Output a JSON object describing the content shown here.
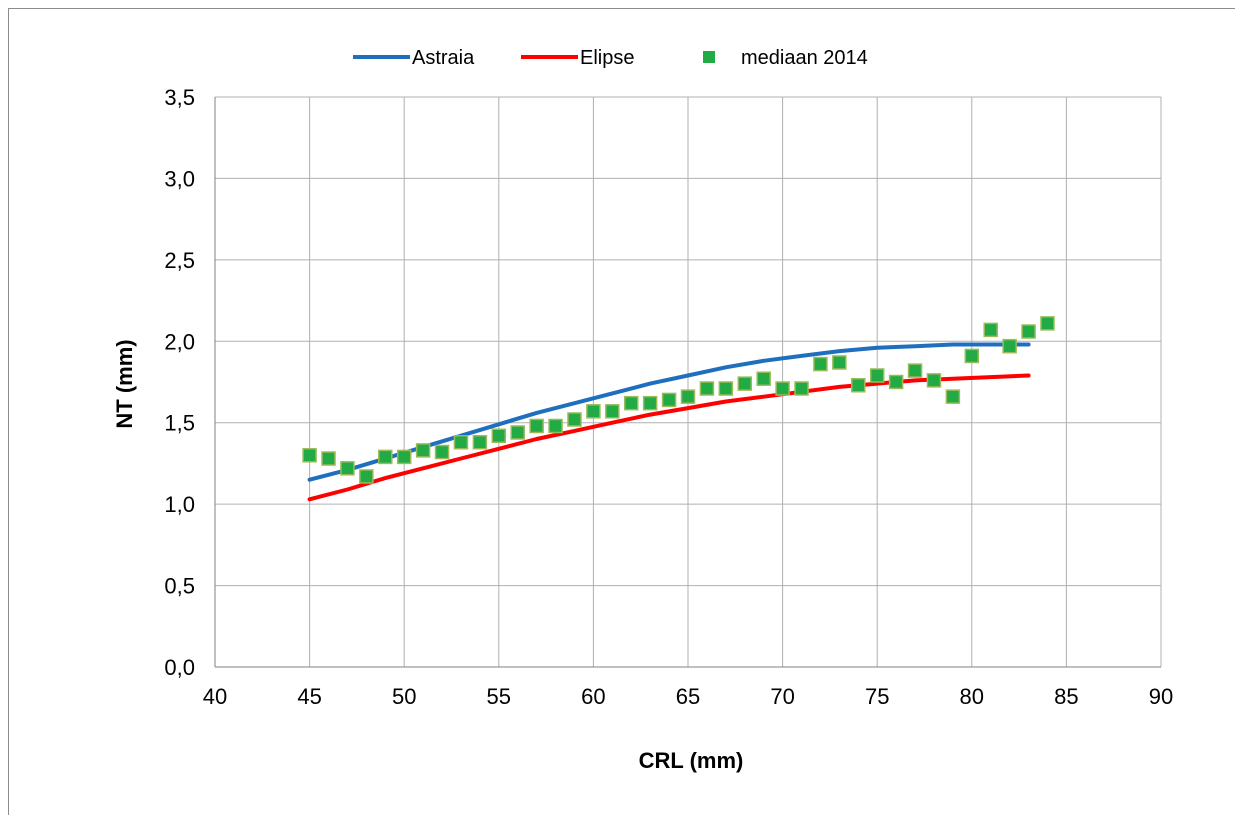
{
  "chart_data": {
    "type": "scatter",
    "xlabel": "CRL (mm)",
    "ylabel": "NT (mm)",
    "xlim": [
      40,
      90
    ],
    "ylim": [
      0,
      3.5
    ],
    "x_ticks": [
      40,
      45,
      50,
      55,
      60,
      65,
      70,
      75,
      80,
      85,
      90
    ],
    "x_tick_labels": [
      "40",
      "45",
      "50",
      "55",
      "60",
      "65",
      "70",
      "75",
      "80",
      "85",
      "90"
    ],
    "y_ticks": [
      0,
      0.5,
      1.0,
      1.5,
      2.0,
      2.5,
      3.0,
      3.5
    ],
    "y_tick_labels": [
      "0,0",
      "0,5",
      "1,0",
      "1,5",
      "2,0",
      "2,5",
      "3,0",
      "3,5"
    ],
    "grid": true,
    "legend_position": "top",
    "series": [
      {
        "name": "Astraia",
        "kind": "line",
        "color": "#1f6fbf",
        "x": [
          45,
          47,
          49,
          51,
          53,
          55,
          57,
          59,
          61,
          63,
          65,
          67,
          69,
          71,
          73,
          75,
          77,
          79,
          81,
          83
        ],
        "y": [
          1.15,
          1.21,
          1.28,
          1.35,
          1.42,
          1.49,
          1.56,
          1.62,
          1.68,
          1.74,
          1.79,
          1.84,
          1.88,
          1.91,
          1.94,
          1.96,
          1.97,
          1.98,
          1.98,
          1.98
        ]
      },
      {
        "name": "Elipse",
        "kind": "line",
        "color": "#ff0000",
        "x": [
          45,
          47,
          49,
          51,
          53,
          55,
          57,
          59,
          61,
          63,
          65,
          67,
          69,
          71,
          73,
          75,
          77,
          79,
          81,
          83
        ],
        "y": [
          1.03,
          1.09,
          1.16,
          1.22,
          1.28,
          1.34,
          1.4,
          1.45,
          1.5,
          1.55,
          1.59,
          1.63,
          1.66,
          1.69,
          1.72,
          1.74,
          1.76,
          1.77,
          1.78,
          1.79
        ]
      },
      {
        "name": "mediaan 2014",
        "kind": "scatter",
        "color": "#22aa44",
        "x": [
          45,
          46,
          47,
          48,
          49,
          50,
          51,
          52,
          53,
          54,
          55,
          56,
          57,
          58,
          59,
          60,
          61,
          62,
          63,
          64,
          65,
          66,
          67,
          68,
          69,
          70,
          71,
          72,
          73,
          74,
          75,
          76,
          77,
          78,
          79,
          80,
          81,
          82,
          83,
          84
        ],
        "y": [
          1.3,
          1.28,
          1.22,
          1.17,
          1.29,
          1.29,
          1.33,
          1.32,
          1.38,
          1.38,
          1.42,
          1.44,
          1.48,
          1.48,
          1.52,
          1.57,
          1.57,
          1.62,
          1.62,
          1.64,
          1.66,
          1.71,
          1.71,
          1.74,
          1.77,
          1.71,
          1.71,
          1.86,
          1.87,
          1.73,
          1.79,
          1.75,
          1.82,
          1.76,
          1.66,
          1.91,
          2.07,
          1.97,
          2.06,
          2.11
        ]
      }
    ]
  }
}
